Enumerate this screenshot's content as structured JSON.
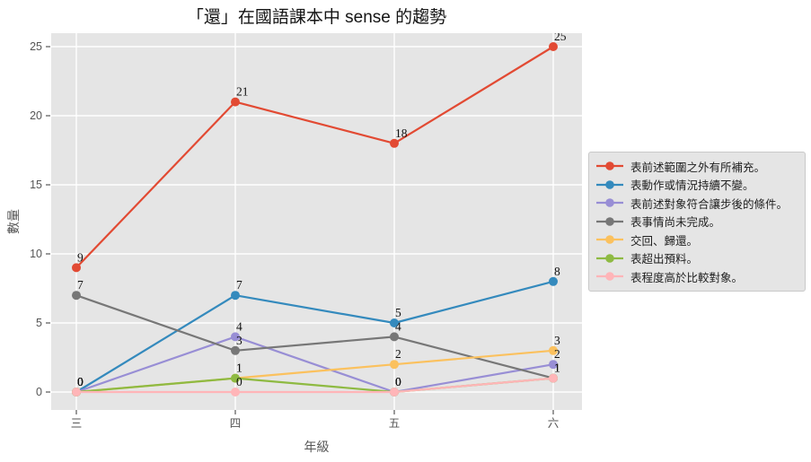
{
  "chart_data": {
    "type": "line",
    "title": "「還」在國語課本中 sense 的趨勢",
    "xlabel": "年級",
    "ylabel": "數量",
    "categories": [
      "三",
      "四",
      "五",
      "六"
    ],
    "yticks": [
      0,
      5,
      10,
      15,
      20,
      25
    ],
    "ylim": [
      -1.3,
      26
    ],
    "grid": true,
    "grid_color": "#ffffff",
    "plot_background": "#e5e5e5",
    "legend_position": "right-outside",
    "point_labels_shown": true,
    "series": [
      {
        "name": "表前述範圍之外有所補充。",
        "color": "#E24A33",
        "values": [
          9,
          21,
          18,
          25
        ]
      },
      {
        "name": "表動作或情況持續不變。",
        "color": "#348ABD",
        "values": [
          0,
          7,
          5,
          8
        ]
      },
      {
        "name": "表前述對象符合讓步後的條件。",
        "color": "#988ED5",
        "values": [
          0,
          4,
          0,
          2
        ]
      },
      {
        "name": "表事情尚未完成。",
        "color": "#777777",
        "values": [
          7,
          3,
          4,
          1
        ]
      },
      {
        "name": "交回、歸還。",
        "color": "#FBC15E",
        "values": [
          0,
          1,
          2,
          3
        ]
      },
      {
        "name": "表超出預料。",
        "color": "#8EBA42",
        "values": [
          0,
          1,
          0,
          1
        ]
      },
      {
        "name": "表程度高於比較對象。",
        "color": "#FFB5B8",
        "values": [
          0,
          0,
          0,
          1
        ]
      }
    ]
  }
}
